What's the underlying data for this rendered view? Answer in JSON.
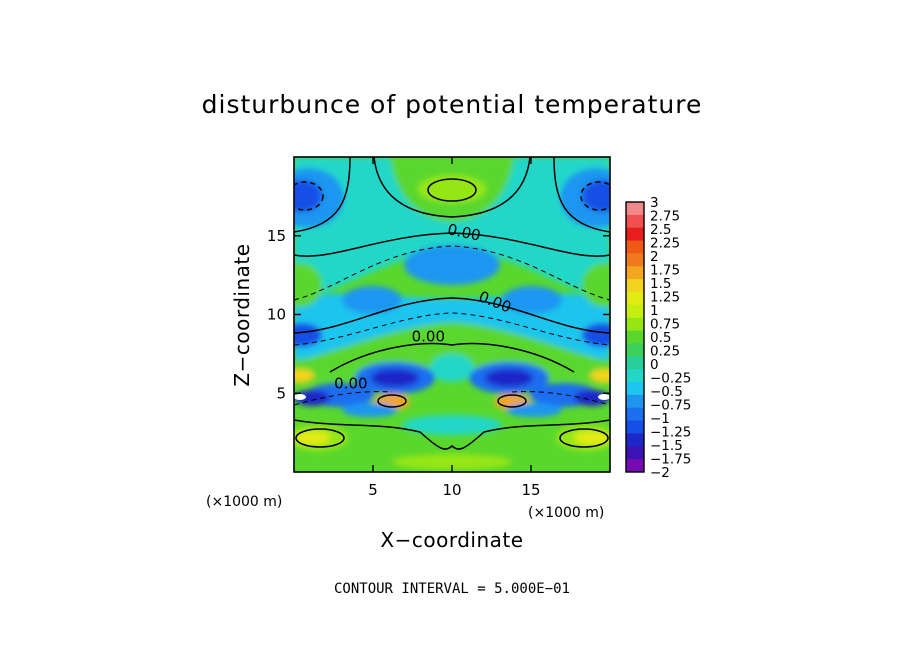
{
  "chart_data": {
    "type": "heatmap",
    "subtype": "filled-contour",
    "title": "disturbunce of potential temperature",
    "xlabel": "X−coordinate",
    "ylabel": "Z−coordinate",
    "x_unit": "(×1000 m)",
    "y_unit": "(×1000 m)",
    "xlim": [
      0,
      20
    ],
    "ylim": [
      0,
      20
    ],
    "x_ticks": [
      "5",
      "10",
      "15"
    ],
    "y_ticks": [
      "5",
      "10",
      "15"
    ],
    "x_tick_values": [
      5,
      10,
      15
    ],
    "y_tick_values": [
      5,
      10,
      15
    ],
    "contour_interval_text": "CONTOUR INTERVAL = 5.000E−01",
    "contour_labels": [
      "0.00",
      "0.00",
      "0.00",
      "0.00"
    ],
    "colorbar": {
      "range": [
        -2,
        3
      ],
      "tick_labels": [
        "3",
        "2.75",
        "2.5",
        "2.25",
        "2",
        "1.75",
        "1.5",
        "1.25",
        "1",
        "0.75",
        "0.5",
        "0.25",
        "0",
        "−0.25",
        "−0.5",
        "−0.75",
        "−1",
        "−1.25",
        "−1.5",
        "−1.75",
        "−2"
      ],
      "colors": [
        "#f08a8a",
        "#f05050",
        "#e81e1e",
        "#ee5a14",
        "#f0781e",
        "#f3a61e",
        "#f2d31e",
        "#e2eb14",
        "#c6ee10",
        "#96e614",
        "#5ad72d",
        "#3ccf5a",
        "#28cf9a",
        "#23d7c8",
        "#1ec5ee",
        "#1e96f0",
        "#1e6ef0",
        "#1450e6",
        "#1e28c8",
        "#3c14b4",
        "#780ab4"
      ]
    },
    "grid": false
  }
}
